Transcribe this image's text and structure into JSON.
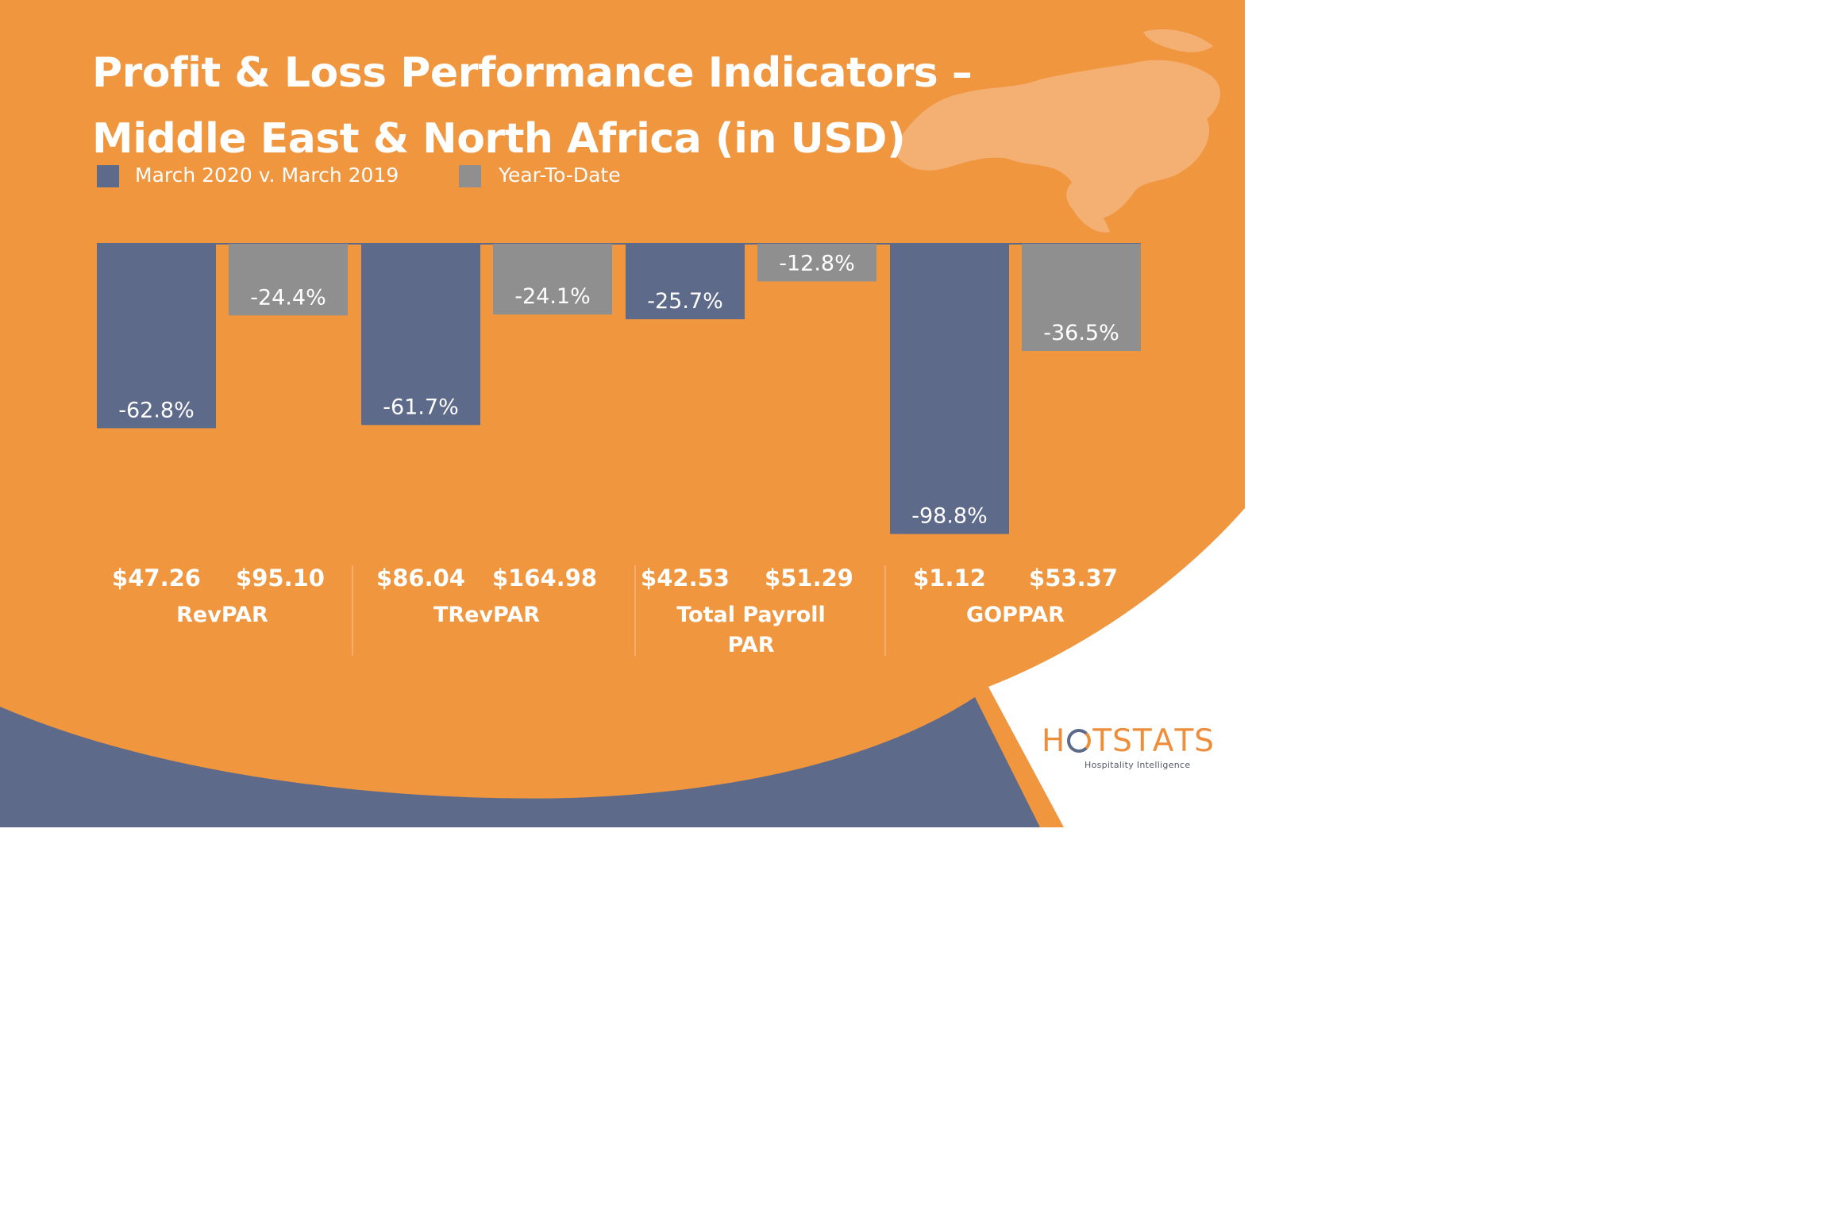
{
  "title_lines": [
    "Profit & Loss Performance Indicators –",
    "Middle East & North Africa (in USD)"
  ],
  "colors": {
    "background": "#ef963f",
    "monthly": "#5e6a8a",
    "ytd": "#8f8f8f",
    "band": "#5e6a8a",
    "white": "#ffffff",
    "map": "#f4b072"
  },
  "legend": [
    {
      "label": "March 2020 v. March 2019",
      "color": "#5e6a8a"
    },
    {
      "label": "Year-To-Date",
      "color": "#8f8f8f"
    }
  ],
  "chart_data": {
    "type": "bar",
    "title": "Profit & Loss Performance Indicators – Middle East & North Africa (in USD)",
    "categories": [
      "RevPAR",
      "TRevPAR",
      "Total Payroll PAR",
      "GOPPAR"
    ],
    "category_label_lines": [
      [
        "RevPAR"
      ],
      [
        "TRevPAR"
      ],
      [
        "Total Payroll",
        "PAR"
      ],
      [
        "GOPPAR"
      ]
    ],
    "series": [
      {
        "name": "March 2020 v. March 2019",
        "values": [
          -62.8,
          -61.7,
          -25.7,
          -98.8
        ],
        "labels": [
          "-62.8%",
          "-61.7%",
          "-25.7%",
          "-98.8%"
        ],
        "usd": [
          "$47.26",
          "$86.04",
          "$42.53",
          "$1.12"
        ]
      },
      {
        "name": "Year-To-Date",
        "values": [
          -24.4,
          -24.1,
          -12.8,
          -36.5
        ],
        "labels": [
          "-24.4%",
          "-24.1%",
          "-12.8%",
          "-36.5%"
        ],
        "usd": [
          "$95.10",
          "$164.98",
          "$51.29",
          "$53.37"
        ]
      }
    ],
    "unit": "%",
    "ylim": [
      -100,
      0
    ],
    "grid": false,
    "legend_position": "top-left"
  },
  "logo": {
    "letters": [
      "H",
      "T",
      "S",
      "T",
      "A",
      "T",
      "S"
    ],
    "tagline": "Hospitality Intelligence"
  }
}
